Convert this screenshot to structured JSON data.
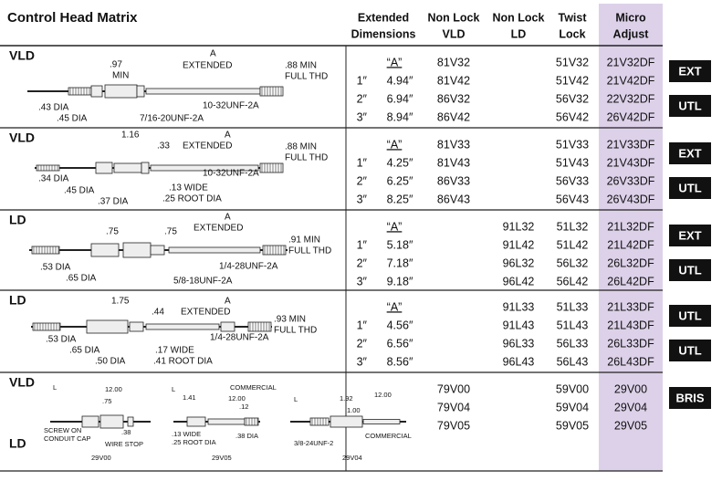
{
  "header": {
    "title": "Control Head Matrix",
    "columns": [
      [
        "Extended",
        "Dimensions"
      ],
      [
        "Non Lock",
        "VLD"
      ],
      [
        "Non Lock",
        "LD"
      ],
      [
        "Twist",
        "Lock"
      ],
      [
        "Micro",
        "Adjust"
      ]
    ]
  },
  "sections": [
    {
      "label": "VLD",
      "drawing_labels": [
        ".97",
        "MIN",
        "A",
        "EXTENDED",
        ".88 MIN",
        "FULL THD",
        ".43 DIA",
        ".45 DIA",
        "7/16-20UNF-2A",
        "10-32UNF-2A"
      ],
      "rows": [
        {
          "dim": "“A”",
          "vld": "81V32",
          "twist": "51V32",
          "micro": "21V32DF"
        },
        {
          "ext": "1″",
          "dim": "4.94″",
          "vld": "81V42",
          "twist": "51V42",
          "micro": "21V42DF"
        },
        {
          "ext": "2″",
          "dim": "6.94″",
          "vld": "86V32",
          "twist": "56V32",
          "micro": "22V32DF"
        },
        {
          "ext": "3″",
          "dim": "8.94″",
          "vld": "86V42",
          "twist": "56V42",
          "micro": "26V42DF"
        }
      ],
      "badges": [
        "EXT",
        "UTL"
      ]
    },
    {
      "label": "VLD",
      "drawing_labels": [
        "1.16",
        ".33",
        "A",
        "EXTENDED",
        ".88 MIN",
        "FULL THD",
        ".34 DIA",
        ".45 DIA",
        ".37 DIA",
        "10-32UNF-2A",
        ".13 WIDE",
        ".25 ROOT DIA"
      ],
      "rows": [
        {
          "dim": "“A”",
          "vld": "81V33",
          "twist": "51V33",
          "micro": "21V33DF"
        },
        {
          "ext": "1″",
          "dim": "4.25″",
          "vld": "81V43",
          "twist": "51V43",
          "micro": "21V43DF"
        },
        {
          "ext": "2″",
          "dim": "6.25″",
          "vld": "86V33",
          "twist": "56V33",
          "micro": "26V33DF"
        },
        {
          "ext": "3″",
          "dim": "8.25″",
          "vld": "86V43",
          "twist": "56V43",
          "micro": "26V43DF"
        }
      ],
      "badges": [
        "EXT",
        "UTL"
      ]
    },
    {
      "label": "LD",
      "drawing_labels": [
        ".75",
        ".75",
        "A",
        "EXTENDED",
        ".91 MIN",
        "FULL THD",
        ".53 DIA",
        ".65 DIA",
        "1/4-28UNF-2A",
        "5/8-18UNF-2A"
      ],
      "rows": [
        {
          "dim": "“A”",
          "ld": "91L32",
          "twist": "51L32",
          "micro": "21L32DF"
        },
        {
          "ext": "1″",
          "dim": "5.18″",
          "ld": "91L42",
          "twist": "51L42",
          "micro": "21L42DF"
        },
        {
          "ext": "2″",
          "dim": "7.18″",
          "ld": "96L32",
          "twist": "56L32",
          "micro": "26L32DF"
        },
        {
          "ext": "3″",
          "dim": "9.18″",
          "ld": "96L42",
          "twist": "56L42",
          "micro": "26L42DF"
        }
      ],
      "badges": [
        "EXT",
        "UTL"
      ]
    },
    {
      "label": "LD",
      "drawing_labels": [
        "1.75",
        ".44",
        "A",
        "EXTENDED",
        ".93 MIN",
        "FULL THD",
        ".53 DIA",
        ".65 DIA",
        ".50 DIA",
        "1/4-28UNF-2A",
        ".17 WIDE",
        ".41 ROOT DIA"
      ],
      "rows": [
        {
          "dim": "“A”",
          "ld": "91L33",
          "twist": "51L33",
          "micro": "21L33DF"
        },
        {
          "ext": "1″",
          "dim": "4.56″",
          "ld": "91L43",
          "twist": "51L43",
          "micro": "21L43DF"
        },
        {
          "ext": "2″",
          "dim": "6.56″",
          "ld": "96L33",
          "twist": "56L33",
          "micro": "26L33DF"
        },
        {
          "ext": "3″",
          "dim": "8.56″",
          "ld": "96L43",
          "twist": "56L43",
          "micro": "26L43DF"
        }
      ],
      "badges": [
        "UTL",
        "UTL"
      ]
    },
    {
      "label": "VLD",
      "label2": "LD",
      "drawing_labels": [
        "L",
        "12.00",
        ".75",
        "SCREW ON",
        "CONDUIT CAP",
        "WIRE STOP",
        ".38",
        "29V00",
        "L",
        "COMMERCIAL",
        "1.41",
        "12.00",
        ".12",
        ".13 WIDE",
        ".25 ROOT DIA",
        ".38 DIA",
        "29V05",
        "L",
        "1.92",
        "12.00",
        "1.00",
        "3/8-24UNF-2",
        "COMMERCIAL",
        "29V04"
      ],
      "rows": [
        {
          "vld": "79V00",
          "twist": "59V00",
          "micro": "29V00"
        },
        {
          "vld": "79V04",
          "twist": "59V04",
          "micro": "29V04"
        },
        {
          "vld": "79V05",
          "twist": "59V05",
          "micro": "29V05"
        }
      ],
      "badges": [
        "BRIS"
      ]
    }
  ]
}
